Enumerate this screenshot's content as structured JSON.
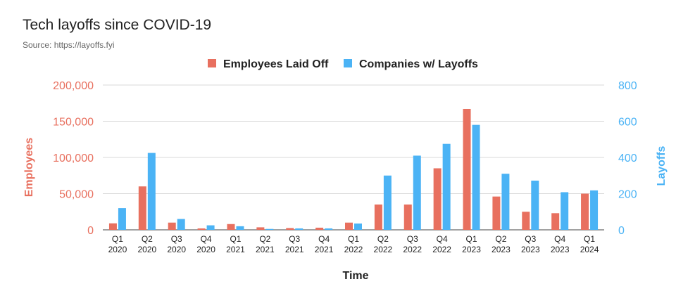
{
  "chart_data": {
    "type": "bar",
    "title": "Tech layoffs since COVID-19",
    "subtitle": "Source: https://layoffs.fyi",
    "xlabel": "Time",
    "ylabel_left": "Employees",
    "ylabel_right": "Layoffs",
    "legend_position": "top-center",
    "grid": true,
    "categories": [
      [
        "Q1",
        "2020"
      ],
      [
        "Q2",
        "2020"
      ],
      [
        "Q3",
        "2020"
      ],
      [
        "Q4",
        "2020"
      ],
      [
        "Q1",
        "2021"
      ],
      [
        "Q2",
        "2021"
      ],
      [
        "Q3",
        "2021"
      ],
      [
        "Q4",
        "2021"
      ],
      [
        "Q1",
        "2022"
      ],
      [
        "Q2",
        "2022"
      ],
      [
        "Q3",
        "2022"
      ],
      [
        "Q4",
        "2022"
      ],
      [
        "Q1",
        "2023"
      ],
      [
        "Q2",
        "2023"
      ],
      [
        "Q3",
        "2023"
      ],
      [
        "Q4",
        "2023"
      ],
      [
        "Q1",
        "2024"
      ]
    ],
    "y_left": {
      "range": [
        0,
        200000
      ],
      "ticks": [
        "0",
        "50,000",
        "100,000",
        "150,000",
        "200,000"
      ],
      "tick_values": [
        0,
        50000,
        100000,
        150000,
        200000
      ]
    },
    "y_right": {
      "range": [
        0,
        800
      ],
      "ticks": [
        "0",
        "200",
        "400",
        "600",
        "800"
      ],
      "tick_values": [
        0,
        200,
        400,
        600,
        800
      ]
    },
    "series": [
      {
        "name": "Employees Laid Off",
        "axis": "left",
        "color": "#E8705F",
        "values": [
          9000,
          60000,
          10000,
          2000,
          8000,
          3500,
          2500,
          3000,
          10000,
          35000,
          35000,
          85000,
          167000,
          46000,
          25000,
          23000,
          50000
        ]
      },
      {
        "name": "Companies w/ Layoffs",
        "axis": "right",
        "color": "#4BB3F5",
        "values": [
          120,
          425,
          60,
          25,
          20,
          5,
          8,
          8,
          35,
          300,
          410,
          475,
          580,
          310,
          272,
          208,
          218
        ]
      }
    ]
  }
}
